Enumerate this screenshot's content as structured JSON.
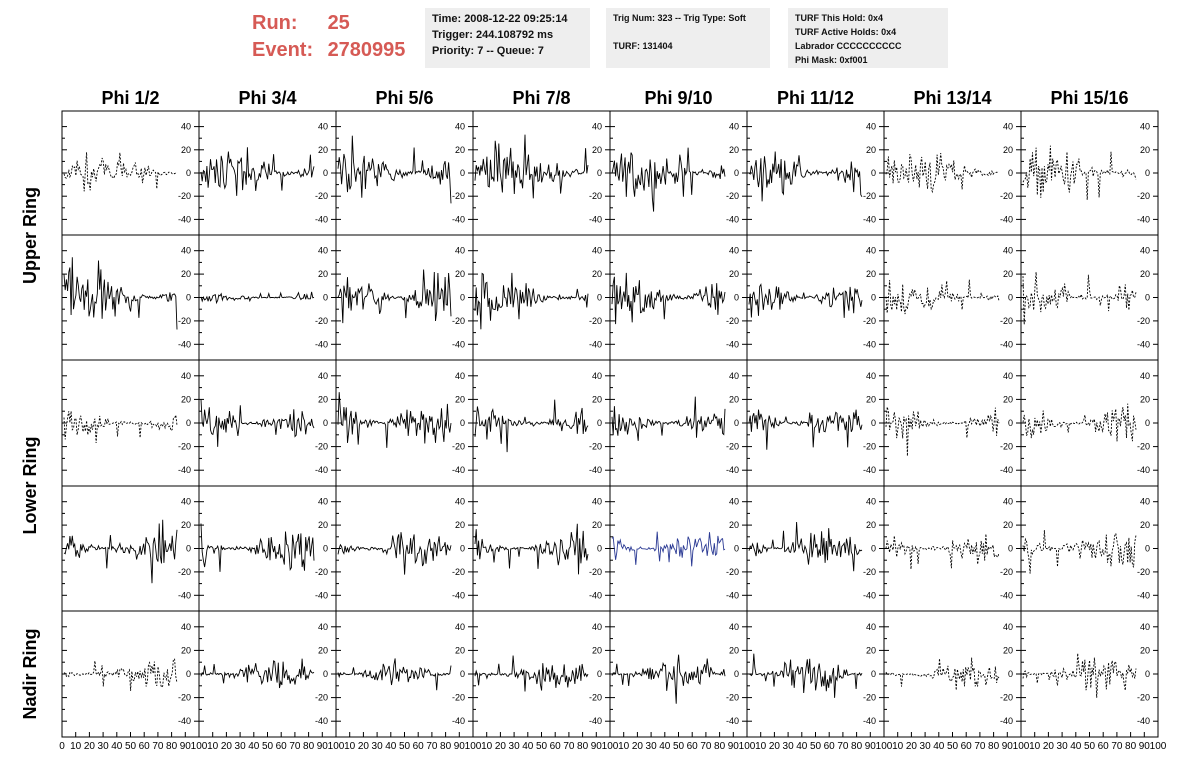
{
  "header": {
    "run_label": "Run:",
    "run_value": "25",
    "event_label": "Event:",
    "event_value": "2780995",
    "time_panel": [
      "Time: 2008-12-22 09:25:14",
      "Trigger: 244.108792 ms",
      "Priority: 7 -- Queue: 7"
    ],
    "trigger_panel": [
      "Trig Num: 323 -- Trig Type: Soft",
      "",
      "TURF: 131404"
    ],
    "turf_panel": [
      "TURF This Hold: 0x4",
      "TURF Active Holds: 0x4",
      "Labrador CCCCCCCCCC",
      "Phi Mask: 0xf001"
    ]
  },
  "colors": {
    "run_text": "#d65a55",
    "trace": "#000000",
    "highlight_trace": "#2b3a94",
    "panel_bg": "#eeeeee"
  },
  "chart_data": {
    "type": "line",
    "columns": [
      "Phi 1/2",
      "Phi 3/4",
      "Phi 5/6",
      "Phi 7/8",
      "Phi 9/10",
      "Phi 11/12",
      "Phi 13/14",
      "Phi 15/16"
    ],
    "row_groups": [
      {
        "label": "Upper Ring",
        "rows": [
          0,
          1
        ]
      },
      {
        "label": "Lower Ring",
        "rows": [
          2,
          3
        ]
      },
      {
        "label": "Nadir Ring",
        "rows": [
          4
        ]
      }
    ],
    "y_ticks": [
      -40,
      -20,
      0,
      20,
      40
    ],
    "ylim": [
      -50,
      50
    ],
    "x_ticks": [
      0,
      10,
      20,
      30,
      40,
      50,
      60,
      70,
      80,
      90,
      100
    ],
    "x_tick_labels": [
      "0",
      "10",
      "20",
      "30",
      "40",
      "50",
      "60",
      "70",
      "80",
      "90",
      "100"
    ],
    "xlim": [
      0,
      100
    ],
    "samples": 96,
    "amplitudes": [
      [
        14,
        20,
        24,
        22,
        23,
        19,
        18,
        22
      ],
      [
        26,
        4,
        20,
        20,
        24,
        16,
        16,
        18
      ],
      [
        14,
        18,
        20,
        18,
        16,
        16,
        16,
        18
      ],
      [
        20,
        20,
        16,
        16,
        16,
        16,
        16,
        20
      ],
      [
        14,
        14,
        12,
        14,
        14,
        16,
        12,
        16
      ]
    ],
    "dashed_columns": [
      6,
      7
    ],
    "dashed_cells": [
      [
        0,
        0
      ],
      [
        2,
        0
      ],
      [
        4,
        0
      ]
    ],
    "highlight_cells": [
      [
        3,
        4
      ]
    ]
  }
}
